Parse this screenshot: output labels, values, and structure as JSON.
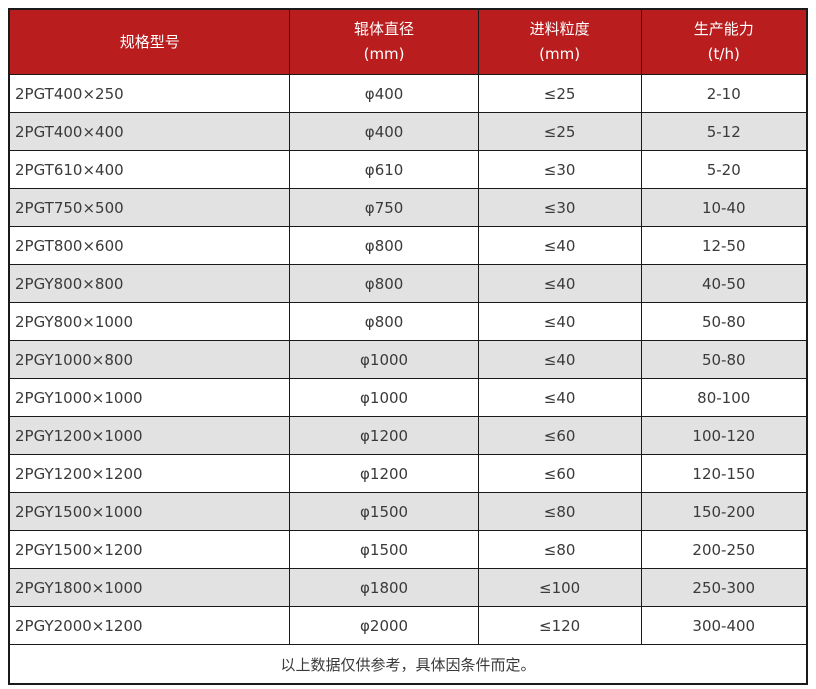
{
  "page": {
    "background": "#ffffff"
  },
  "table": {
    "columns": [
      {
        "title": "规格型号",
        "unit": ""
      },
      {
        "title": "辊体直径",
        "unit": "(mm)"
      },
      {
        "title": "进料粒度",
        "unit": "(mm)"
      },
      {
        "title": "生产能力",
        "unit": "(t/h)"
      }
    ],
    "rows": [
      [
        "2PGT400×250",
        "φ400",
        "≤25",
        "2-10"
      ],
      [
        "2PGT400×400",
        "φ400",
        "≤25",
        "5-12"
      ],
      [
        "2PGT610×400",
        "φ610",
        "≤30",
        "5-20"
      ],
      [
        "2PGT750×500",
        "φ750",
        "≤30",
        "10-40"
      ],
      [
        "2PGT800×600",
        "φ800",
        "≤40",
        "12-50"
      ],
      [
        "2PGY800×800",
        "φ800",
        "≤40",
        "40-50"
      ],
      [
        "2PGY800×1000",
        "φ800",
        "≤40",
        "50-80"
      ],
      [
        "2PGY1000×800",
        "φ1000",
        "≤40",
        "50-80"
      ],
      [
        "2PGY1000×1000",
        "φ1000",
        "≤40",
        "80-100"
      ],
      [
        "2PGY1200×1000",
        "φ1200",
        "≤60",
        "100-120"
      ],
      [
        "2PGY1200×1200",
        "φ1200",
        "≤60",
        "120-150"
      ],
      [
        "2PGY1500×1000",
        "φ1500",
        "≤80",
        "150-200"
      ],
      [
        "2PGY1500×1200",
        "φ1500",
        "≤80",
        "200-250"
      ],
      [
        "2PGY1800×1000",
        "φ1800",
        "≤100",
        "250-300"
      ],
      [
        "2PGY2000×1200",
        "φ2000",
        "≤120",
        "300-400"
      ]
    ],
    "footer_note": "以上数据仅供参考，具体因条件而定。",
    "colors": {
      "header_bg": "#b91d1e",
      "header_text": "#ffffff",
      "row_bg": "#ffffff",
      "row_alt_bg": "#e2e2e2",
      "border": "#1a1a1a",
      "text": "#3a3a3a"
    }
  }
}
